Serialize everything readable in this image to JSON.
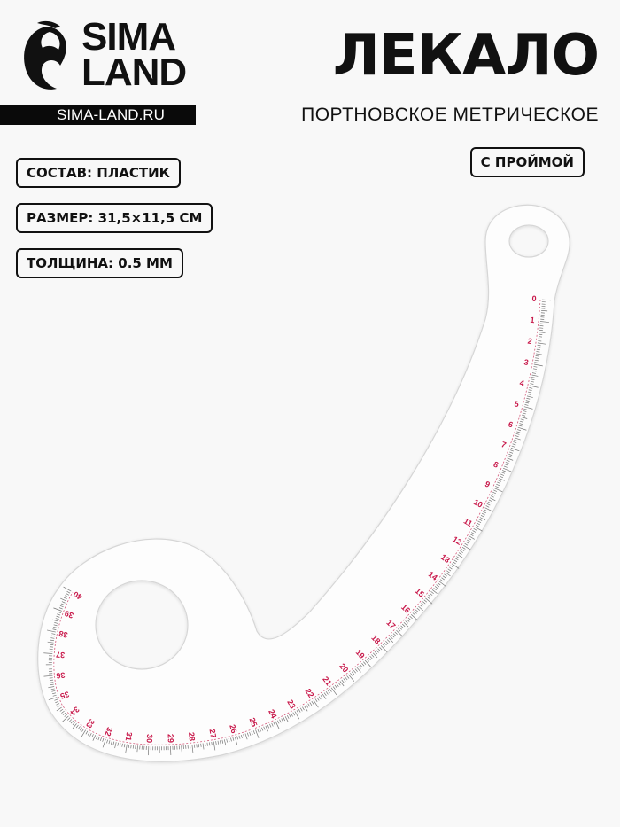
{
  "brand": {
    "logo_text": "SIMA LAND",
    "logo_line1": "SIMA",
    "logo_line2": "LAND",
    "website": "SIMA-LAND.RU"
  },
  "product": {
    "title": "ЛЕКАЛО",
    "subtitle": "ПОРТНОВСКОЕ МЕТРИЧЕСКОЕ",
    "feature_badge": "С ПРОЙМОЙ"
  },
  "specs": [
    {
      "label": "СОСТАВ: ПЛАСТИК"
    },
    {
      "label": "РАЗМЕР: 31,5×11,5 СМ"
    },
    {
      "label": "ТОЛЩИНА: 0.5 ММ"
    }
  ],
  "ruler": {
    "scale_labels": [
      "0",
      "1",
      "2",
      "3",
      "4",
      "5",
      "6",
      "7",
      "8",
      "9",
      "10",
      "11",
      "12",
      "13",
      "14",
      "15",
      "16",
      "17",
      "18",
      "19",
      "20",
      "21",
      "22",
      "23",
      "24",
      "25",
      "26",
      "27",
      "28",
      "29",
      "30",
      "31",
      "32",
      "33",
      "34",
      "35",
      "36",
      "37",
      "38",
      "39",
      "40"
    ],
    "scale_color": "#c8184a"
  }
}
